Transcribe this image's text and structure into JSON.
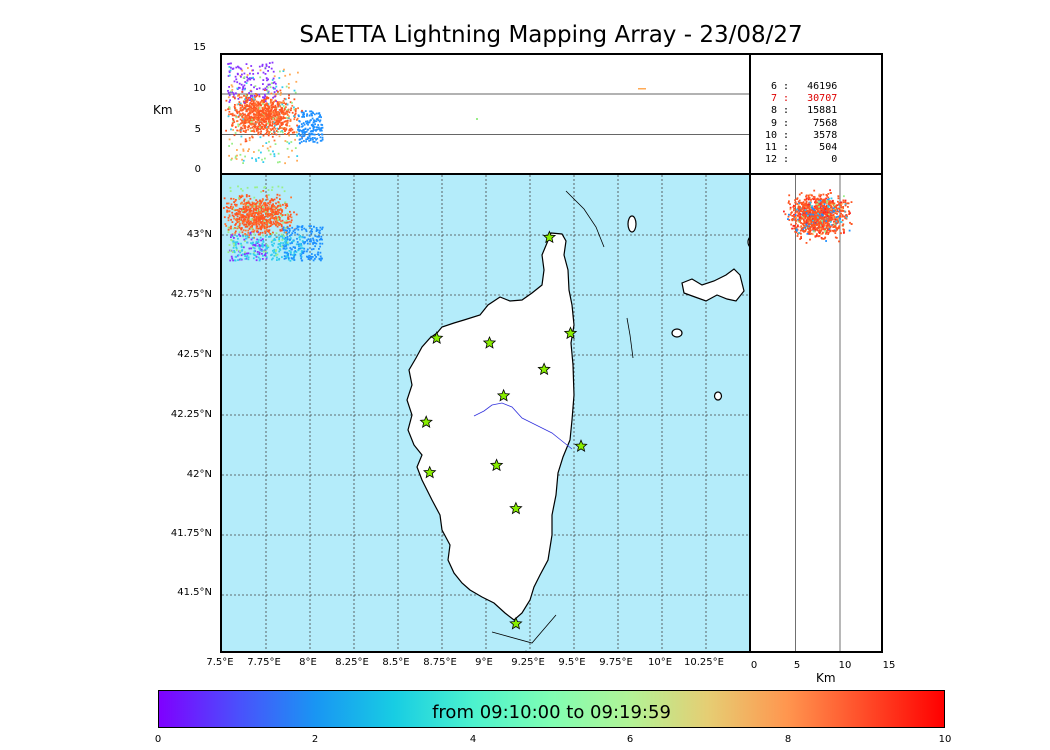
{
  "title": "SAETTA Lightning Mapping Array - 23/08/27",
  "altitude_axis": {
    "label": "Km",
    "ticks": [
      "15",
      "10",
      "5",
      "0"
    ]
  },
  "side_axis": {
    "label": "Km",
    "ticks": [
      "0",
      "5",
      "10",
      "15"
    ]
  },
  "map": {
    "lat_ticks": [
      "43°N",
      "42.75°N",
      "42.5°N",
      "42.25°N",
      "42°N",
      "41.75°N",
      "41.5°N"
    ],
    "lon_ticks": [
      "7.5°E",
      "7.75°E",
      "8°E",
      "8.25°E",
      "8.5°E",
      "8.75°E",
      "9°E",
      "9.25°E",
      "9.5°E",
      "9.75°E",
      "10°E",
      "10.25°E"
    ],
    "sea_color": "#b4ecfa",
    "land_color": "#ffffff",
    "river_color": "#3333dd",
    "station_icon": "star-icon",
    "station_color": "#88ee00",
    "stations": [
      {
        "lon": 9.36,
        "lat": 42.99
      },
      {
        "lon": 9.48,
        "lat": 42.59
      },
      {
        "lon": 8.72,
        "lat": 42.57
      },
      {
        "lon": 9.02,
        "lat": 42.55
      },
      {
        "lon": 9.33,
        "lat": 42.44
      },
      {
        "lon": 9.1,
        "lat": 42.33
      },
      {
        "lon": 8.66,
        "lat": 42.22
      },
      {
        "lon": 9.54,
        "lat": 42.12
      },
      {
        "lon": 9.06,
        "lat": 42.04
      },
      {
        "lon": 8.68,
        "lat": 42.01
      },
      {
        "lon": 9.17,
        "lat": 41.86
      },
      {
        "lon": 9.17,
        "lat": 41.38
      }
    ]
  },
  "stats": [
    {
      "stations": "6",
      "count": "46196",
      "color": "#000000"
    },
    {
      "stations": "7",
      "count": "30707",
      "color": "#dd0000"
    },
    {
      "stations": "8",
      "count": "15881",
      "color": "#000000"
    },
    {
      "stations": "9",
      "count": "7568",
      "color": "#000000"
    },
    {
      "stations": "10",
      "count": "3578",
      "color": "#000000"
    },
    {
      "stations": "11",
      "count": "504",
      "color": "#000000"
    },
    {
      "stations": "12",
      "count": "0",
      "color": "#000000"
    }
  ],
  "colorbar": {
    "label": "from 09:10:00 to 09:19:59",
    "ticks": [
      "0",
      "2",
      "4",
      "6",
      "8",
      "10"
    ],
    "colormap": [
      "#7f00ff",
      "#4b4ffc",
      "#1996f3",
      "#18cde3",
      "#4cf2ce",
      "#80feb3",
      "#b2f396",
      "#e6cd73",
      "#ff964f",
      "#ff4b28",
      "#ff0000"
    ]
  },
  "storm_colors": [
    "#ff5522",
    "#ff7733",
    "#1e90ff",
    "#33ccee",
    "#99ee88",
    "#ffaa55",
    "#8833ff",
    "#ff2222"
  ]
}
